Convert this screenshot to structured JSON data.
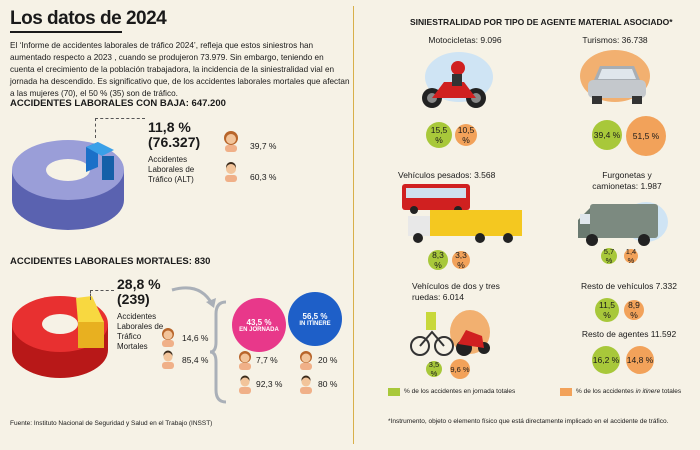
{
  "header": {
    "title": "Los datos de 2024",
    "intro": "El ‘Informe de accidentes laborales de tráfico 2024’, refleja que estos siniestros han aumentado respecto a 2023 , cuando se produjeron 73.979. Sin embargo, teniendo en cuenta el crecimiento de la población trabajadora, la incidencia de la siniestralidad vial en jornada ha descendido. Es significativo que, de los accidentes laborales mortales que afectan a las mujeres (70), el 50 % (35) son de tráfico."
  },
  "baja": {
    "heading": "ACCIDENTES LABORALES CON BAJA: 647.200",
    "pct": "11,8 %",
    "count": "(76.327)",
    "label": "Accidentes Laborales de Tráfico (ALT)",
    "women": "39,7 %",
    "men": "60,3 %"
  },
  "mortales": {
    "heading": "ACCIDENTES LABORALES MORTALES: 830",
    "pct": "28,8 %",
    "count": "(239)",
    "label": "Accidentes Laborales de Tráfico Mortales",
    "women": "14,6 %",
    "men": "85,4 %",
    "jornada": {
      "pct": "43,5 %",
      "label": "EN JORNADA",
      "women": "7,7 %",
      "men": "92,3 %"
    },
    "itinere": {
      "pct": "56,5 %",
      "label": "IN ITINERE",
      "women": "20 %",
      "men": "80 %"
    }
  },
  "right": {
    "heading": "SINIESTRALIDAD POR TIPO DE AGENTE MATERIAL ASOCIADO*",
    "vehicles": [
      {
        "label": "Motocicletas: 9.096",
        "green": "15,5 %",
        "orange": "10,5 %"
      },
      {
        "label": "Turismos: 36.738",
        "green": "39,4 %",
        "orange": "51,5 %"
      },
      {
        "label": "Vehículos pesados: 3.568",
        "green": "8,3 %",
        "orange": "3,3 %"
      },
      {
        "label": "Furgonetas y camionetas: 1.987",
        "green": "5,7 %",
        "orange": "1,4 %"
      },
      {
        "label": "Vehículos de dos y tres ruedas: 6.014",
        "green": "3,5 %",
        "orange": "9,6 %"
      },
      {
        "label": "Resto de vehículos 7.332",
        "green": "11,5 %",
        "orange": "8,9 %"
      },
      {
        "label": "Resto de agentes 11.592",
        "green": "16,2 %",
        "orange": "14,8 %"
      }
    ],
    "legend_green": "% de los accidentes en jornada totales",
    "legend_orange_a": "% de los accidentes ",
    "legend_orange_b": "in itinere",
    "legend_orange_c": " totales",
    "footnote": "*Instrumento, objeto o elemento físico que está directamente implicado en el accidente de tráfico."
  },
  "source": "Fuente: Instituto Nacional de Seguridad y Salud en el Trabajo (INSST)",
  "colors": {
    "green": "#a8c83a",
    "orange": "#f2a25a",
    "pink": "#e8388a",
    "blue": "#1e5fc8",
    "purple": "#8a90d0",
    "red": "#e02a2a",
    "yellow": "#f6c832"
  }
}
